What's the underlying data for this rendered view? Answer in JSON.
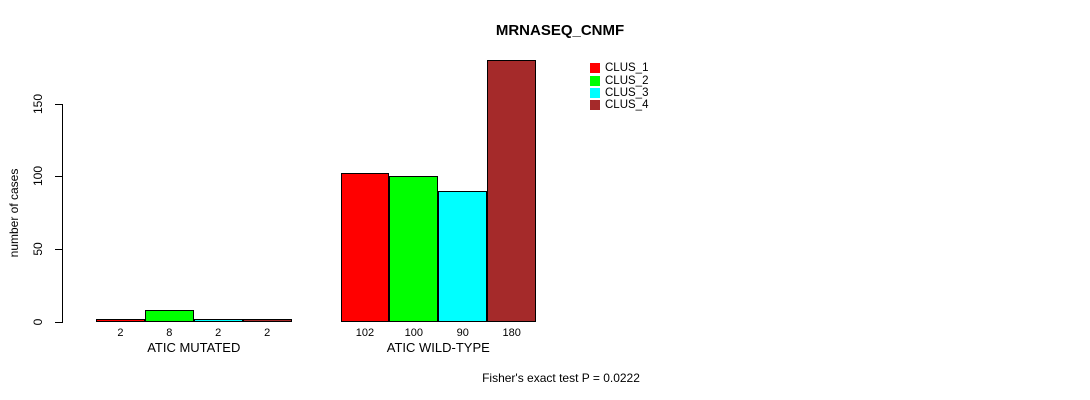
{
  "title": "MRNASEQ_CNMF",
  "footer": "Fisher's exact test P = 0.0222",
  "chart_data": {
    "type": "bar",
    "title": "MRNASEQ_CNMF",
    "xlabel": "",
    "ylabel": "number of cases",
    "ylim": [
      0,
      185
    ],
    "yticks": [
      0,
      50,
      100,
      150
    ],
    "grid": false,
    "legend_position": "top-right",
    "categories": [
      "ATIC MUTATED",
      "ATIC WILD-TYPE"
    ],
    "series": [
      {
        "name": "CLUS_1",
        "color": "#FF0000",
        "values": [
          2,
          102
        ]
      },
      {
        "name": "CLUS_2",
        "color": "#00FF00",
        "values": [
          8,
          100
        ]
      },
      {
        "name": "CLUS_3",
        "color": "#00FFFF",
        "values": [
          2,
          90
        ]
      },
      {
        "name": "CLUS_4",
        "color": "#A52A2A",
        "values": [
          2,
          180
        ]
      }
    ],
    "bar_value_labels": [
      [
        2,
        8,
        2,
        2
      ],
      [
        102,
        100,
        90,
        180
      ]
    ],
    "annotation": "Fisher's exact test P = 0.0222"
  },
  "colors": {
    "bar_border": "#000000",
    "axis": "#000000",
    "text": "#000000",
    "background": "#FFFFFF"
  }
}
